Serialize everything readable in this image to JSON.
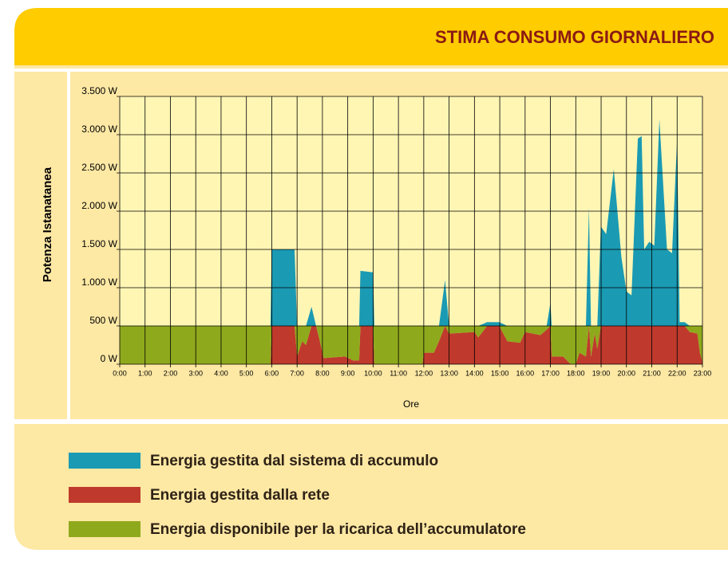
{
  "chart_data": {
    "type": "area",
    "stacked": true,
    "title": "STIMA CONSUMO GIORNALIERO",
    "ylabel": "Potenza Istanatanea",
    "xlabel": "Ore",
    "grid": true,
    "x": [
      0,
      5.95,
      6.0,
      6.9,
      7.0,
      7.2,
      7.35,
      7.57,
      7.75,
      7.9,
      8.05,
      8.9,
      9.2,
      9.45,
      9.5,
      10.0,
      10.05,
      11.95,
      12.0,
      12.4,
      12.6,
      12.84,
      13.0,
      14.0,
      14.15,
      14.5,
      14.98,
      15.3,
      15.8,
      16.0,
      16.6,
      16.85,
      17.0,
      17.05,
      17.5,
      17.8,
      18.0,
      18.15,
      18.4,
      18.52,
      18.6,
      18.75,
      18.85,
      18.99,
      19.2,
      19.5,
      19.8,
      20.0,
      20.2,
      20.45,
      20.6,
      20.7,
      20.9,
      21.1,
      21.3,
      21.6,
      21.8,
      22.0,
      22.1,
      22.3,
      22.5,
      22.8,
      22.9,
      23.0
    ],
    "series": [
      {
        "name": "Energia gestita dalla rete",
        "color": "#bf3a2c",
        "values": [
          0,
          0,
          500,
          500,
          100,
          300,
          250,
          500,
          500,
          300,
          80,
          100,
          50,
          50,
          500,
          500,
          0,
          0,
          150,
          150,
          300,
          500,
          400,
          420,
          350,
          500,
          500,
          300,
          280,
          420,
          380,
          450,
          500,
          100,
          100,
          0,
          0,
          150,
          100,
          500,
          100,
          400,
          200,
          500,
          500,
          500,
          500,
          500,
          500,
          500,
          500,
          500,
          500,
          500,
          500,
          500,
          500,
          500,
          500,
          500,
          420,
          400,
          150,
          30
        ]
      },
      {
        "name": "Energia disponibile per la ricarica dell’accumulatore",
        "color": "#8fa91c",
        "values": [
          500,
          500,
          0,
          0,
          400,
          200,
          250,
          0,
          0,
          200,
          420,
          400,
          450,
          450,
          0,
          0,
          500,
          500,
          350,
          350,
          200,
          0,
          100,
          80,
          150,
          0,
          0,
          200,
          220,
          80,
          120,
          50,
          0,
          400,
          400,
          500,
          500,
          350,
          400,
          0,
          400,
          100,
          300,
          0,
          0,
          0,
          0,
          0,
          0,
          0,
          0,
          0,
          0,
          0,
          0,
          0,
          0,
          0,
          0,
          0,
          80,
          100,
          350,
          470
        ]
      },
      {
        "name": "Energia gestita dal sistema di accumulo",
        "color": "#1b9ab3",
        "values": [
          0,
          0,
          1000,
          1000,
          0,
          0,
          0,
          250,
          0,
          0,
          0,
          0,
          0,
          0,
          720,
          700,
          0,
          0,
          0,
          0,
          0,
          600,
          0,
          0,
          0,
          50,
          50,
          0,
          0,
          0,
          0,
          0,
          300,
          0,
          0,
          0,
          0,
          0,
          0,
          1550,
          0,
          0,
          0,
          1300,
          1200,
          2050,
          900,
          450,
          400,
          2450,
          2480,
          1000,
          1100,
          1050,
          2700,
          1000,
          950,
          2450,
          50,
          50,
          0,
          0,
          0,
          0
        ]
      }
    ],
    "legend_order": [
      2,
      0,
      1
    ],
    "xlim": [
      0,
      23
    ],
    "xticks": [
      {
        "value": 0,
        "label": "0:00"
      },
      {
        "value": 1,
        "label": "1:00"
      },
      {
        "value": 2,
        "label": "2:00"
      },
      {
        "value": 3,
        "label": "3:00"
      },
      {
        "value": 4,
        "label": "4:00"
      },
      {
        "value": 5,
        "label": "5:00"
      },
      {
        "value": 6,
        "label": "6:00"
      },
      {
        "value": 7,
        "label": "7:00"
      },
      {
        "value": 8,
        "label": "8:00"
      },
      {
        "value": 9,
        "label": "9:00"
      },
      {
        "value": 10,
        "label": "10:00"
      },
      {
        "value": 11,
        "label": "11:00"
      },
      {
        "value": 12,
        "label": "12:00"
      },
      {
        "value": 13,
        "label": "13:00"
      },
      {
        "value": 14,
        "label": "14:00"
      },
      {
        "value": 15,
        "label": "15:00"
      },
      {
        "value": 16,
        "label": "16:00"
      },
      {
        "value": 17,
        "label": "17:00"
      },
      {
        "value": 18,
        "label": "18:00"
      },
      {
        "value": 19,
        "label": "19:00"
      },
      {
        "value": 20,
        "label": "20:00"
      },
      {
        "value": 21,
        "label": "21:00"
      },
      {
        "value": 22,
        "label": "22:00"
      },
      {
        "value": 23,
        "label": "23:00"
      }
    ],
    "ylim": [
      0,
      3500
    ],
    "yticks": [
      {
        "value": 0,
        "label": "0 W"
      },
      {
        "value": 500,
        "label": "500 W"
      },
      {
        "value": 1000,
        "label": "1.000 W"
      },
      {
        "value": 1500,
        "label": "1.500 W"
      },
      {
        "value": 2000,
        "label": "2.000 W"
      },
      {
        "value": 2500,
        "label": "2.500 W"
      },
      {
        "value": 3000,
        "label": "3.000 W"
      },
      {
        "value": 3500,
        "label": "3.500 W"
      }
    ]
  }
}
